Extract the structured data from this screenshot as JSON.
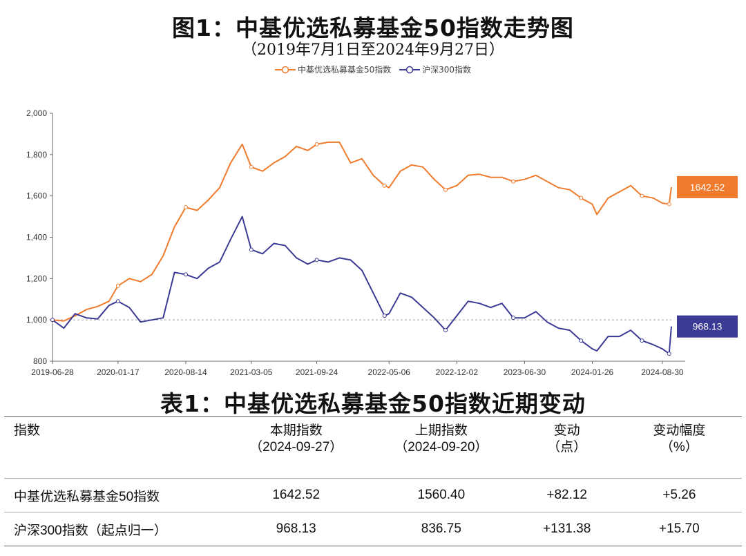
{
  "title": "图1：中基优选私募基金50指数走势图",
  "subtitle": "（2019年7月1日至2024年9月27日）",
  "legend": [
    {
      "label": "中基优选私募基金50指数",
      "color": "#f07b2c"
    },
    {
      "label": "沪深300指数",
      "color": "#3b3a94"
    }
  ],
  "chart_data": {
    "type": "line",
    "title": "图1：中基优选私募基金50指数走势图",
    "subtitle": "（2019年7月1日至2024年9月27日）",
    "x_tick_labels": [
      "2019-06-28",
      "2020-01-17",
      "2020-08-14",
      "2021-03-05",
      "2021-09-24",
      "2022-05-06",
      "2022-12-02",
      "2023-06-30",
      "2024-01-26",
      "2024-08-30"
    ],
    "x_range": [
      "2019-06-28",
      "2024-09-27"
    ],
    "ylim": [
      800,
      2000
    ],
    "y_ticks": [
      800,
      1000,
      1200,
      1400,
      1600,
      1800,
      2000
    ],
    "y_tick_labels": [
      "800",
      "1,000",
      "1,200",
      "1,400",
      "1,600",
      "1,800",
      "2,000"
    ],
    "reference_line": 1000,
    "grid": false,
    "legend_position": "top-center",
    "series": [
      {
        "name": "中基优选私募基金50指数",
        "color": "#f07b2c",
        "end_label": "1642.52",
        "points": [
          [
            "2019-06-28",
            1000
          ],
          [
            "2019-08-02",
            995
          ],
          [
            "2019-09-06",
            1020
          ],
          [
            "2019-10-11",
            1050
          ],
          [
            "2019-11-15",
            1065
          ],
          [
            "2019-12-20",
            1090
          ],
          [
            "2020-01-17",
            1165
          ],
          [
            "2020-02-21",
            1200
          ],
          [
            "2020-03-27",
            1185
          ],
          [
            "2020-05-01",
            1220
          ],
          [
            "2020-06-05",
            1310
          ],
          [
            "2020-07-10",
            1450
          ],
          [
            "2020-08-14",
            1545
          ],
          [
            "2020-09-18",
            1530
          ],
          [
            "2020-10-23",
            1580
          ],
          [
            "2020-11-27",
            1640
          ],
          [
            "2020-12-31",
            1760
          ],
          [
            "2021-02-05",
            1850
          ],
          [
            "2021-03-05",
            1740
          ],
          [
            "2021-04-09",
            1720
          ],
          [
            "2021-05-14",
            1760
          ],
          [
            "2021-06-18",
            1790
          ],
          [
            "2021-07-23",
            1840
          ],
          [
            "2021-08-27",
            1820
          ],
          [
            "2021-09-24",
            1850
          ],
          [
            "2021-10-29",
            1860
          ],
          [
            "2021-12-03",
            1860
          ],
          [
            "2022-01-07",
            1760
          ],
          [
            "2022-02-11",
            1780
          ],
          [
            "2022-03-18",
            1700
          ],
          [
            "2022-04-22",
            1650
          ],
          [
            "2022-05-06",
            1640
          ],
          [
            "2022-06-10",
            1720
          ],
          [
            "2022-07-15",
            1750
          ],
          [
            "2022-08-19",
            1740
          ],
          [
            "2022-09-23",
            1680
          ],
          [
            "2022-10-28",
            1630
          ],
          [
            "2022-12-02",
            1650
          ],
          [
            "2023-01-06",
            1700
          ],
          [
            "2023-02-10",
            1705
          ],
          [
            "2023-03-17",
            1690
          ],
          [
            "2023-04-21",
            1690
          ],
          [
            "2023-05-26",
            1670
          ],
          [
            "2023-06-30",
            1680
          ],
          [
            "2023-08-04",
            1700
          ],
          [
            "2023-09-08",
            1670
          ],
          [
            "2023-10-13",
            1640
          ],
          [
            "2023-11-17",
            1630
          ],
          [
            "2023-12-22",
            1590
          ],
          [
            "2024-01-26",
            1560
          ],
          [
            "2024-02-09",
            1510
          ],
          [
            "2024-03-15",
            1590
          ],
          [
            "2024-04-19",
            1620
          ],
          [
            "2024-05-24",
            1650
          ],
          [
            "2024-06-28",
            1600
          ],
          [
            "2024-08-02",
            1590
          ],
          [
            "2024-08-30",
            1565
          ],
          [
            "2024-09-20",
            1560.4
          ],
          [
            "2024-09-27",
            1642.52
          ]
        ]
      },
      {
        "name": "沪深300指数",
        "color": "#3b3a94",
        "end_label": "968.13",
        "points": [
          [
            "2019-06-28",
            1000
          ],
          [
            "2019-08-02",
            960
          ],
          [
            "2019-09-06",
            1030
          ],
          [
            "2019-10-11",
            1010
          ],
          [
            "2019-11-15",
            1005
          ],
          [
            "2019-12-20",
            1070
          ],
          [
            "2020-01-17",
            1090
          ],
          [
            "2020-02-21",
            1060
          ],
          [
            "2020-03-27",
            990
          ],
          [
            "2020-05-01",
            1000
          ],
          [
            "2020-06-05",
            1010
          ],
          [
            "2020-07-10",
            1230
          ],
          [
            "2020-08-14",
            1220
          ],
          [
            "2020-09-18",
            1200
          ],
          [
            "2020-10-23",
            1250
          ],
          [
            "2020-11-27",
            1280
          ],
          [
            "2020-12-31",
            1390
          ],
          [
            "2021-02-05",
            1500
          ],
          [
            "2021-03-05",
            1340
          ],
          [
            "2021-04-09",
            1320
          ],
          [
            "2021-05-14",
            1370
          ],
          [
            "2021-06-18",
            1360
          ],
          [
            "2021-07-23",
            1300
          ],
          [
            "2021-08-27",
            1270
          ],
          [
            "2021-09-24",
            1290
          ],
          [
            "2021-10-29",
            1280
          ],
          [
            "2021-12-03",
            1300
          ],
          [
            "2022-01-07",
            1290
          ],
          [
            "2022-02-11",
            1240
          ],
          [
            "2022-03-18",
            1130
          ],
          [
            "2022-04-22",
            1020
          ],
          [
            "2022-05-06",
            1030
          ],
          [
            "2022-06-10",
            1130
          ],
          [
            "2022-07-15",
            1110
          ],
          [
            "2022-08-19",
            1060
          ],
          [
            "2022-09-23",
            1010
          ],
          [
            "2022-10-28",
            950
          ],
          [
            "2022-12-02",
            1020
          ],
          [
            "2023-01-06",
            1090
          ],
          [
            "2023-02-10",
            1080
          ],
          [
            "2023-03-17",
            1060
          ],
          [
            "2023-04-21",
            1080
          ],
          [
            "2023-05-26",
            1010
          ],
          [
            "2023-06-30",
            1010
          ],
          [
            "2023-08-04",
            1040
          ],
          [
            "2023-09-08",
            990
          ],
          [
            "2023-10-13",
            960
          ],
          [
            "2023-11-17",
            950
          ],
          [
            "2023-12-22",
            900
          ],
          [
            "2024-01-26",
            860
          ],
          [
            "2024-02-09",
            850
          ],
          [
            "2024-03-15",
            920
          ],
          [
            "2024-04-19",
            920
          ],
          [
            "2024-05-24",
            950
          ],
          [
            "2024-06-28",
            900
          ],
          [
            "2024-08-02",
            880
          ],
          [
            "2024-08-30",
            860
          ],
          [
            "2024-09-20",
            836.75
          ],
          [
            "2024-09-27",
            968.13
          ]
        ]
      }
    ]
  },
  "table": {
    "title": "表1：中基优选私募基金50指数近期变动",
    "headers": [
      {
        "line1": "指数",
        "line2": ""
      },
      {
        "line1": "本期指数",
        "line2": "（2024-09-27）"
      },
      {
        "line1": "上期指数",
        "line2": "（2024-09-20）"
      },
      {
        "line1": "变动",
        "line2": "（点）"
      },
      {
        "line1": "变动幅度",
        "line2": "（%）"
      }
    ],
    "rows": [
      [
        "中基优选私募基金50指数",
        "1642.52",
        "1560.40",
        "+82.12",
        "+5.26"
      ],
      [
        "沪深300指数（起点归一）",
        "968.13",
        "836.75",
        "+131.38",
        "+15.70"
      ]
    ]
  }
}
